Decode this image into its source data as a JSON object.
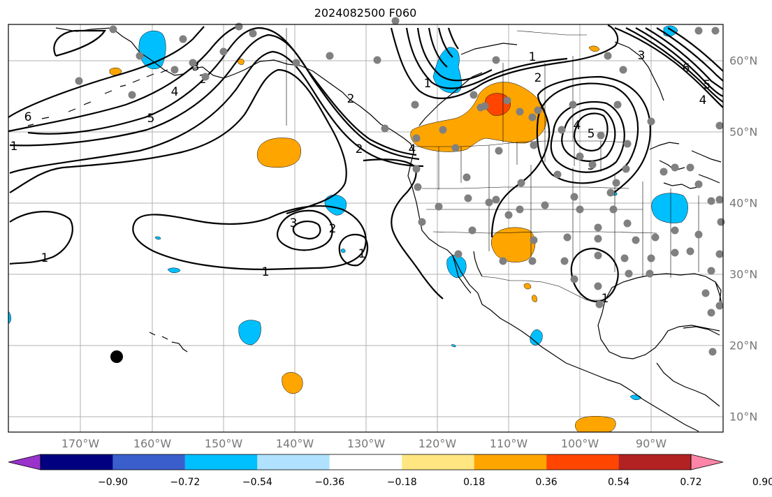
{
  "title": "2024082500 F060",
  "lon_labels": [
    "170°W",
    "160°W",
    "150°W",
    "140°W",
    "130°W",
    "120°W",
    "110°W",
    "100°W",
    "90°W"
  ],
  "lat_labels": [
    "60°N",
    "50°N",
    "40°N",
    "30°N",
    "20°N",
    "10°N"
  ],
  "contour_labels": [
    "6",
    "5",
    "4",
    "3",
    "2",
    "1",
    "1",
    "1",
    "2",
    "3",
    "1",
    "5",
    "4",
    "3",
    "2",
    "1",
    "1",
    "6",
    "5",
    "4",
    "3",
    "2",
    "1",
    "2",
    "4"
  ],
  "colorbar": {
    "tick_labels": [
      "−0.90",
      "−0.72",
      "−0.54",
      "−0.36",
      "−0.18",
      "0.18",
      "0.36",
      "0.54",
      "0.72",
      "0.90"
    ],
    "colors": [
      "#9933cc",
      "#000080",
      "#3a5fcd",
      "#00bfff",
      "#b0e2ff",
      "#ffffff",
      "#ffe680",
      "#ffa500",
      "#ff4500",
      "#b22222",
      "#ff85a8"
    ]
  },
  "colors": {
    "positive_fill": "#ffa500",
    "positive_strong": "#ff4500",
    "negative_fill": "#00bfff",
    "station": "#808080",
    "grid": "#b0b0b0",
    "label": "#777777"
  }
}
